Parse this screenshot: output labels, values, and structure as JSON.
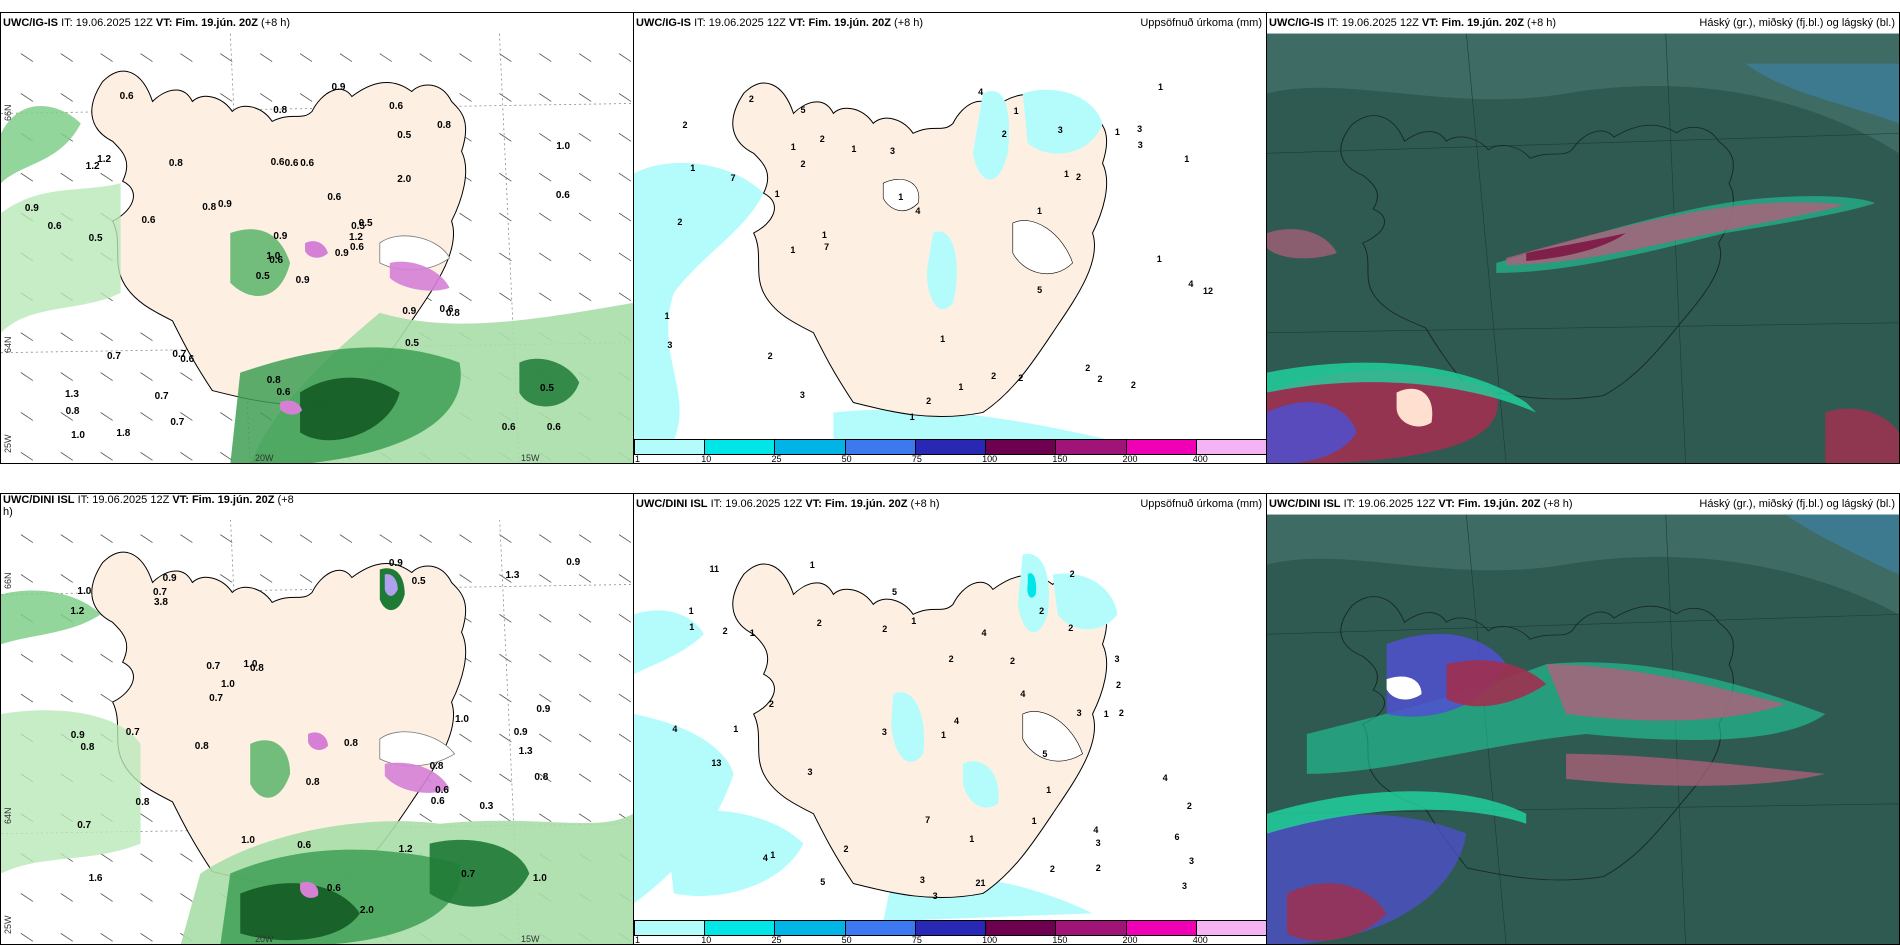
{
  "panels": {
    "p1": {
      "model": "UWC/IG-IS",
      "it_prefix": "IT:",
      "it": "19.06.2025 12Z",
      "vt_prefix": "VT:",
      "vt": "Fim. 19.jún. 20Z",
      "lead": "(+8 h)"
    },
    "p2": {
      "model": "UWC/IG-IS",
      "it_prefix": "IT:",
      "it": "19.06.2025 12Z",
      "vt_prefix": "VT:",
      "vt": "Fim. 19.jún. 20Z",
      "lead": "(+8 h)",
      "title": "Uppsöfnuð úrkoma (mm)"
    },
    "p3": {
      "model": "UWC/IG-IS",
      "it_prefix": "IT:",
      "it": "19.06.2025 12Z",
      "vt_prefix": "VT:",
      "vt": "Fim. 19.jún. 20Z",
      "lead": "(+8 h)",
      "title": "Háský (gr.), miðský (fj.bl.) og lágský (bl.)"
    },
    "p4": {
      "model": "UWC/DINI ISL",
      "it_prefix": "IT:",
      "it": "19.06.2025 12Z",
      "vt_prefix": "VT:",
      "vt": "Fim. 19.jún. 20Z",
      "lead": "(+8",
      "lead2": "h)"
    },
    "p5": {
      "model": "UWC/DINI ISL",
      "it_prefix": "IT:",
      "it": "19.06.2025 12Z",
      "vt_prefix": "VT:",
      "vt": "Fim. 19.jún. 20Z",
      "lead": "(+8 h)",
      "title": "Uppsöfnuð úrkoma (mm)"
    },
    "p6": {
      "model": "UWC/DINI ISL",
      "it_prefix": "IT:",
      "it": "19.06.2025 12Z",
      "vt_prefix": "VT:",
      "vt": "Fim. 19.jún. 20Z",
      "lead": "(+8 h)",
      "title": "Háský (gr.), miðský (fj.bl.) og lágský (bl.)"
    }
  },
  "axis_labels": {
    "lat66": "66N",
    "lat64": "64N",
    "lon25": "25W",
    "lon20": "20W",
    "lon15": "15W"
  },
  "colorbar": {
    "ticks": [
      "1",
      "10",
      "25",
      "50",
      "75",
      "100",
      "150",
      "200",
      "400"
    ],
    "colors": [
      "#b4fcfc",
      "#00e6e6",
      "#00b4e6",
      "#3c78f0",
      "#2828b4",
      "#6e0050",
      "#a01478",
      "#f000b4",
      "#f4b4f4"
    ]
  },
  "left_labels_top": [
    "0.9",
    "1.2",
    "0.6",
    "1.3",
    "0.5",
    "0.6",
    "0.6",
    "0.6",
    "0.5",
    "0.9",
    "0.6",
    "0.6",
    "0.5",
    "1.0",
    "0.5",
    "2.0",
    "1.8",
    "0.6",
    "0.6",
    "0.7",
    "0.9",
    "0.8",
    "0.7",
    "0.6",
    "0.5",
    "0.8",
    "1.2",
    "0.8",
    "0.6",
    "0.9",
    "0.6",
    "1.0",
    "0.8",
    "0.9",
    "0.8",
    "0.8",
    "0.7",
    "0.6",
    "0.5",
    "0.6",
    "0.9",
    "0.8",
    "0.6",
    "0.5",
    "0.7",
    "0.9",
    "1.2",
    "1.0",
    "0.6",
    "0.6"
  ],
  "left_labels_bottom": [
    "0.8",
    "1.3",
    "1.6",
    "0.9",
    "0.8",
    "0.7",
    "0.7",
    "0.5",
    "0.7",
    "2.0",
    "1.2",
    "0.9",
    "1.0",
    "1.0",
    "1.0",
    "0.9",
    "0.8",
    "0.8",
    "1.0",
    "0.8",
    "0.9",
    "1.3",
    "0.7",
    "0.8",
    "0.9",
    "0.7",
    "0.6",
    "0.8",
    "3.8",
    "1.0",
    "0.6",
    "1.2",
    "1.0",
    "0.8",
    "0.9",
    "0.3",
    "0.6",
    "0.7",
    "0.6"
  ],
  "precip_labels_top": [
    "1",
    "2",
    "1",
    "2",
    "1",
    "1",
    "5",
    "7",
    "3",
    "12",
    "4",
    "2",
    "1",
    "2",
    "2",
    "3",
    "1",
    "3",
    "2",
    "2",
    "2",
    "1",
    "4",
    "1",
    "3",
    "1",
    "3",
    "1",
    "2",
    "1",
    "1",
    "2",
    "1",
    "7",
    "2",
    "5",
    "1",
    "2",
    "4",
    "3",
    "2",
    "1",
    "1",
    "2",
    "1",
    "1"
  ],
  "precip_labels_bottom": [
    "2",
    "3",
    "1",
    "3",
    "3",
    "1",
    "21",
    "2",
    "2",
    "13",
    "4",
    "4",
    "5",
    "2",
    "3",
    "2",
    "2",
    "1",
    "1",
    "1",
    "1",
    "7",
    "4",
    "3",
    "2",
    "1",
    "11",
    "3",
    "4",
    "5",
    "4",
    "1",
    "2",
    "2",
    "3",
    "2",
    "1",
    "2",
    "2",
    "2",
    "1",
    "4",
    "3",
    "5",
    "2",
    "3",
    "6",
    "4",
    "2",
    "1",
    "1"
  ]
}
